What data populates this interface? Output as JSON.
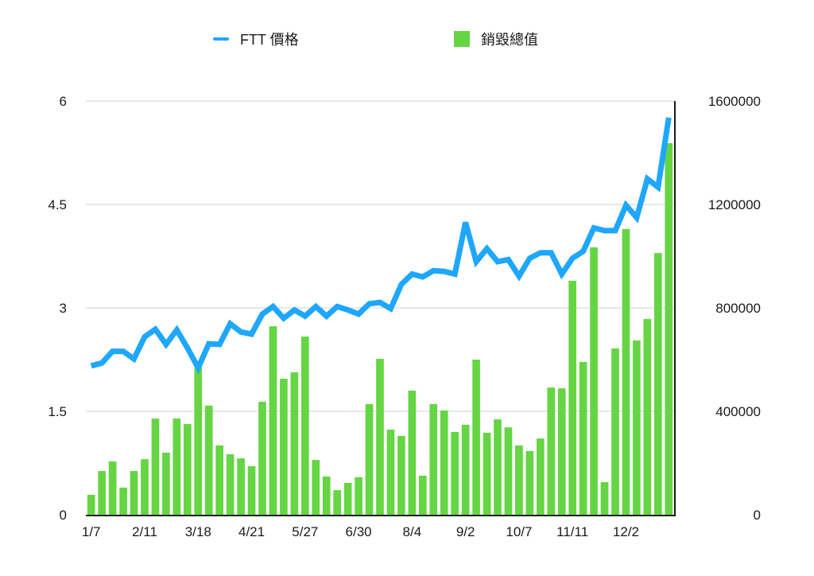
{
  "chart_data": {
    "type": "bar+line",
    "title": "",
    "legend": [
      {
        "name": "FTT 價格",
        "type": "line",
        "color": "#1ea7fd",
        "axis": "left"
      },
      {
        "name": "銷毀總值",
        "type": "bar",
        "color": "#65d544",
        "axis": "right"
      }
    ],
    "x_tick_labels": [
      {
        "index": 0,
        "label": "1/7"
      },
      {
        "index": 5,
        "label": "2/11"
      },
      {
        "index": 10,
        "label": "3/18"
      },
      {
        "index": 15,
        "label": "4/21"
      },
      {
        "index": 20,
        "label": "5/27"
      },
      {
        "index": 25,
        "label": "6/30"
      },
      {
        "index": 30,
        "label": "8/4"
      },
      {
        "index": 35,
        "label": "9/2"
      },
      {
        "index": 40,
        "label": "10/7"
      },
      {
        "index": 45,
        "label": "11/11"
      },
      {
        "index": 50,
        "label": "12/2"
      }
    ],
    "left_axis": {
      "label": "",
      "min": 0,
      "max": 6,
      "ticks": [
        "0",
        "1.5",
        "3",
        "4.5",
        "6"
      ]
    },
    "right_axis": {
      "label": "",
      "min": 0,
      "max": 1600000,
      "ticks": [
        "0",
        "400000",
        "800000",
        "1200000",
        "1600000"
      ]
    },
    "grid": true,
    "legend_position": "top",
    "series": [
      {
        "name": "FTT 價格",
        "type": "line",
        "axis": "left",
        "values": [
          2.16,
          2.2,
          2.37,
          2.37,
          2.26,
          2.58,
          2.69,
          2.47,
          2.68,
          2.42,
          2.13,
          2.48,
          2.47,
          2.77,
          2.65,
          2.62,
          2.91,
          3.02,
          2.85,
          2.97,
          2.88,
          3.02,
          2.88,
          3.02,
          2.97,
          2.91,
          3.06,
          3.08,
          2.99,
          3.34,
          3.49,
          3.45,
          3.54,
          3.53,
          3.49,
          4.24,
          3.67,
          3.86,
          3.67,
          3.7,
          3.46,
          3.72,
          3.8,
          3.8,
          3.49,
          3.72,
          3.82,
          4.16,
          4.12,
          4.12,
          4.49,
          4.31,
          4.87,
          4.75,
          5.76
        ]
      },
      {
        "name": "銷毀總值",
        "type": "bar",
        "axis": "right",
        "values": [
          77000,
          169000,
          206000,
          105000,
          169000,
          215000,
          372000,
          240000,
          372000,
          351000,
          575000,
          422000,
          268000,
          234000,
          218000,
          188000,
          437000,
          729000,
          526000,
          551000,
          689000,
          212000,
          148000,
          95000,
          123000,
          145000,
          428000,
          603000,
          329000,
          305000,
          480000,
          151000,
          428000,
          403000,
          320000,
          348000,
          600000,
          317000,
          369000,
          338000,
          268000,
          246000,
          295000,
          492000,
          489000,
          905000,
          591000,
          1034000,
          126000,
          643000,
          1105000,
          674000,
          757000,
          1012000,
          1437000
        ]
      }
    ]
  },
  "legend": {
    "line_label": "FTT 價格",
    "bar_label": "銷毀總值"
  }
}
